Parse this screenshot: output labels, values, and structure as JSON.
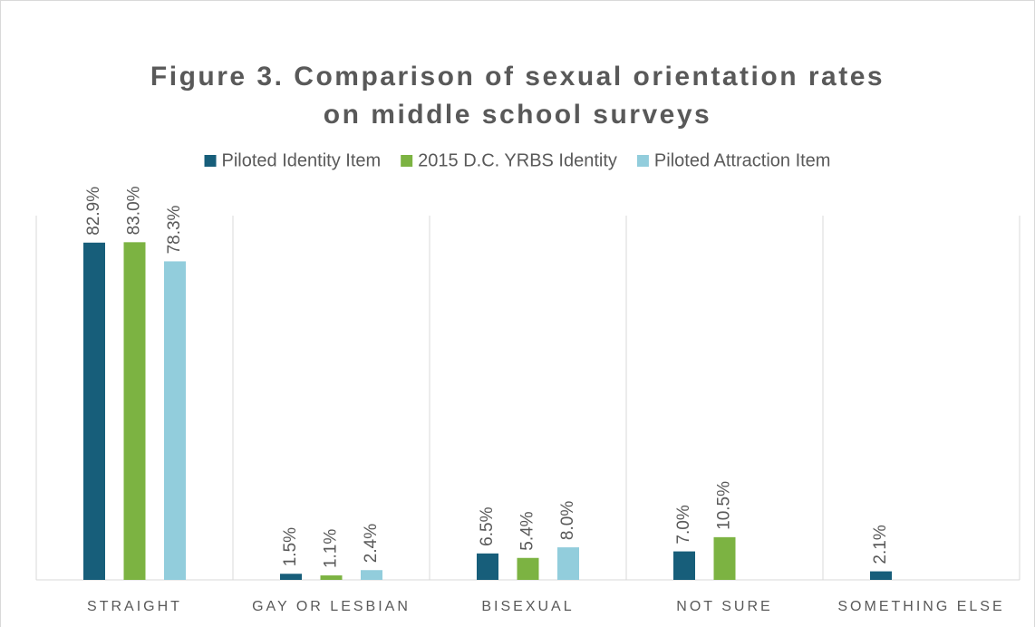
{
  "chart_data": {
    "type": "bar",
    "title": [
      "Figure 3. Comparison of sexual orientation rates",
      "on middle school surveys"
    ],
    "categories": [
      "STRAIGHT",
      "GAY OR LESBIAN",
      "BISEXUAL",
      "NOT SURE",
      "SOMETHING ELSE"
    ],
    "series": [
      {
        "name": "Piloted Identity Item",
        "color": "#175e7a",
        "values": [
          82.9,
          1.5,
          6.5,
          7.0,
          2.1
        ],
        "value_labels": [
          "82.9%",
          "1.5%",
          "6.5%",
          "7.0%",
          "2.1%"
        ]
      },
      {
        "name": "2015 D.C. YRBS Identity",
        "color": "#7cb342",
        "values": [
          83.0,
          1.1,
          5.4,
          10.5,
          null
        ],
        "value_labels": [
          "83.0%",
          "1.1%",
          "5.4%",
          "10.5%",
          null
        ]
      },
      {
        "name": "Piloted Attraction Item",
        "color": "#92cddc",
        "values": [
          78.3,
          2.4,
          8.0,
          null,
          null
        ],
        "value_labels": [
          "78.3%",
          "2.4%",
          "8.0%",
          null,
          null
        ]
      }
    ],
    "ylim": [
      0,
      100
    ],
    "legend": "top"
  }
}
